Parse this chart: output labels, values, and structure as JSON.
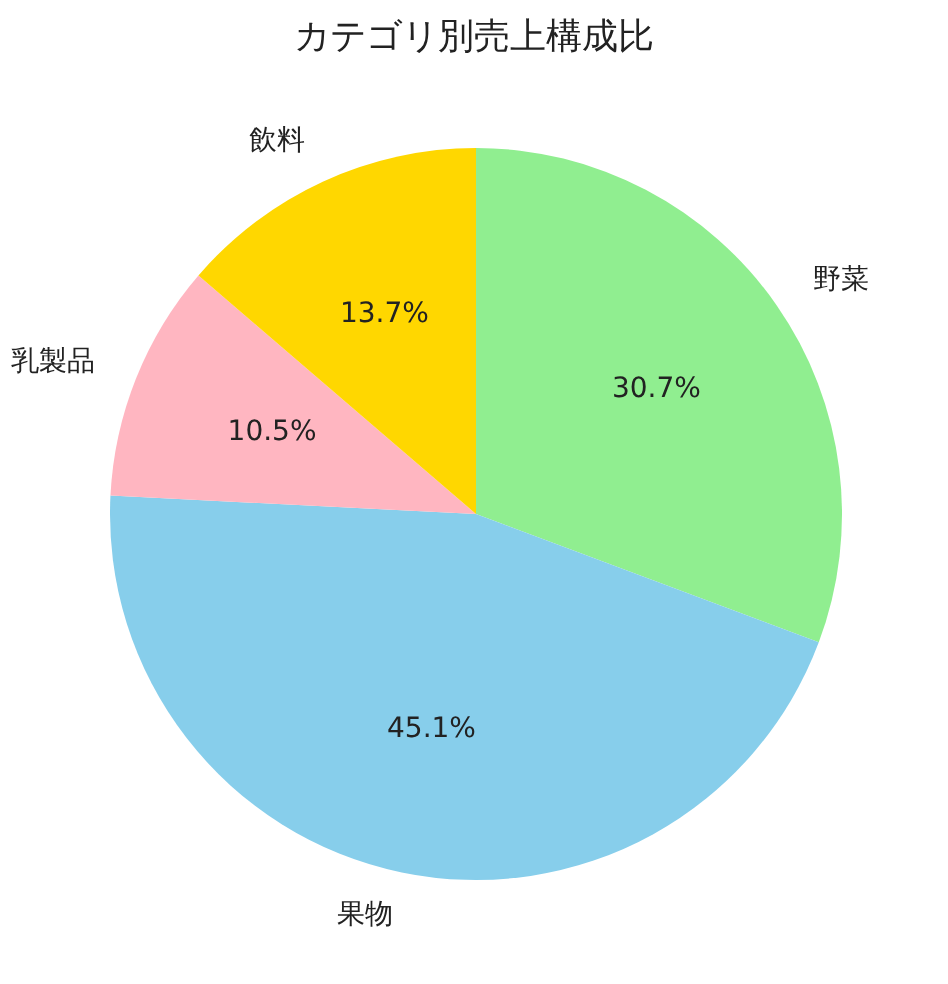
{
  "chart_data": {
    "type": "pie",
    "title": "カテゴリ別売上構成比",
    "categories": [
      "野菜",
      "果物",
      "乳製品",
      "飲料"
    ],
    "values": [
      30.7,
      45.1,
      10.5,
      13.7
    ],
    "colors": [
      "#90ee90",
      "#87ceeb",
      "#ffb6c1",
      "#ffd700"
    ],
    "value_labels": [
      "30.7%",
      "45.1%",
      "10.5%",
      "13.7%"
    ]
  }
}
